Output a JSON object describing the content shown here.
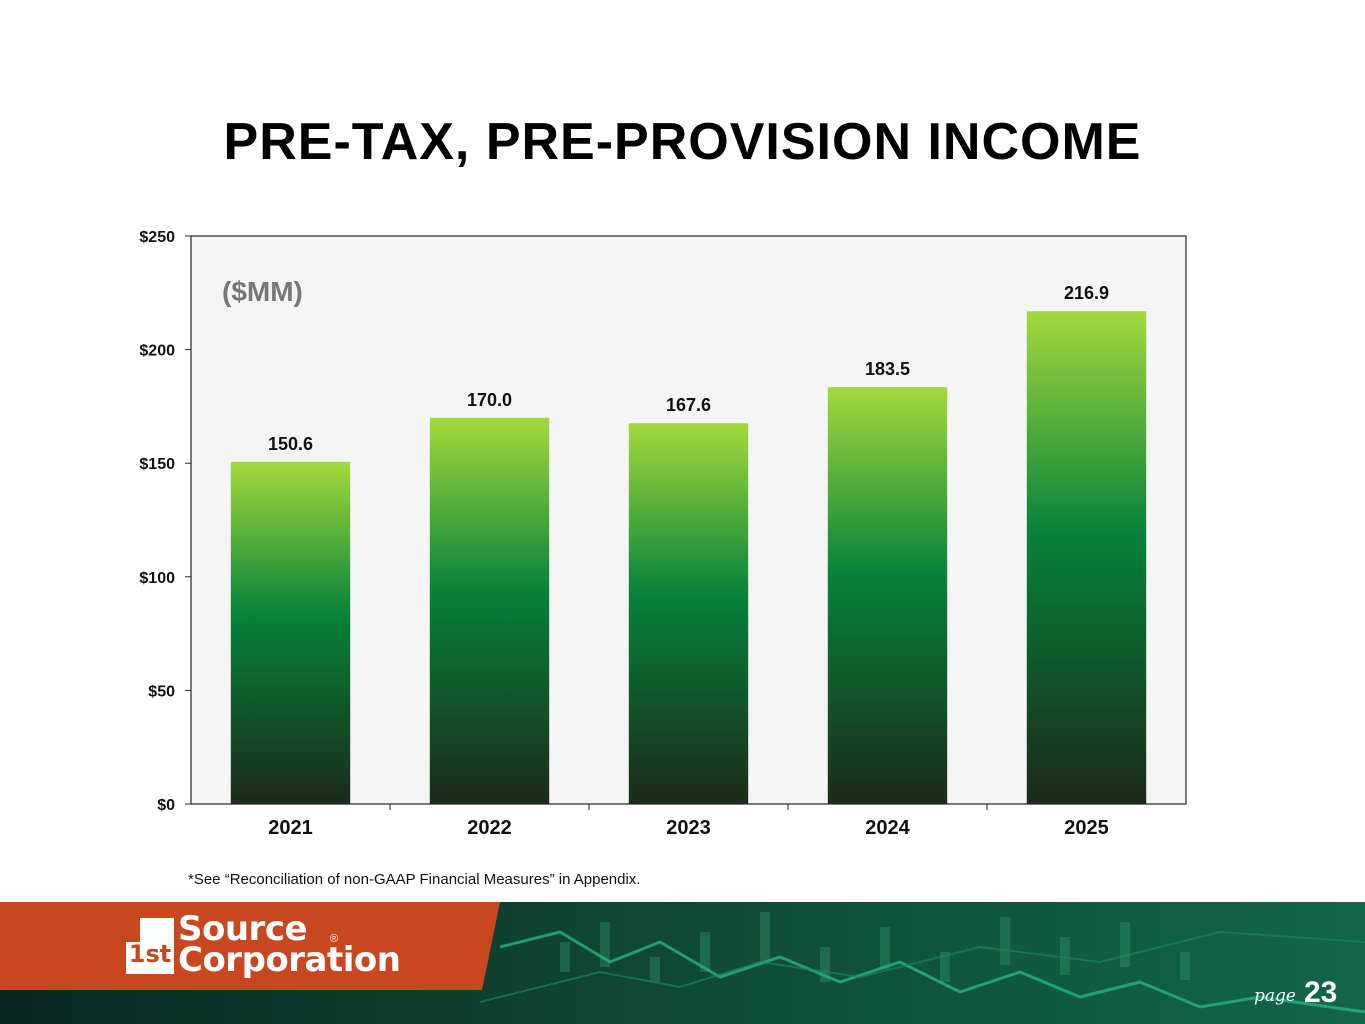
{
  "page": {
    "title": "PRE-TAX, PRE-PROVISION INCOME",
    "footnote": "*See “Reconciliation of non-GAAP Financial Measures” in Appendix.",
    "page_label": "page",
    "page_number": "23"
  },
  "logo": {
    "line1": "Source",
    "line2": "Corporation",
    "mark": "1st",
    "registered": "®"
  },
  "colors": {
    "bar_top": "#a4d93c",
    "bar_mid": "#06823a",
    "bar_bottom": "#1c2a1a",
    "plot_bg": "#f5f5f5",
    "unit_label": "#777777",
    "footer_orange": "#c9471f",
    "footer_dark": "#0c2f26"
  },
  "chart_data": {
    "type": "bar",
    "title": "PRE-TAX, PRE-PROVISION INCOME",
    "unit_label": "($MM)",
    "categories": [
      "2021",
      "2022",
      "2023",
      "2024",
      "2025"
    ],
    "values": [
      150.6,
      170.0,
      167.6,
      183.5,
      216.9
    ],
    "value_labels": [
      "150.6",
      "170.0",
      "167.6",
      "183.5",
      "216.9"
    ],
    "ylim": [
      0,
      250
    ],
    "yticks": [
      0,
      50,
      100,
      150,
      200,
      250
    ],
    "ytick_labels": [
      "$0",
      "$50",
      "$100",
      "$150",
      "$200",
      "$250"
    ],
    "xlabel": "",
    "ylabel": "",
    "grid": false,
    "legend": "none"
  }
}
